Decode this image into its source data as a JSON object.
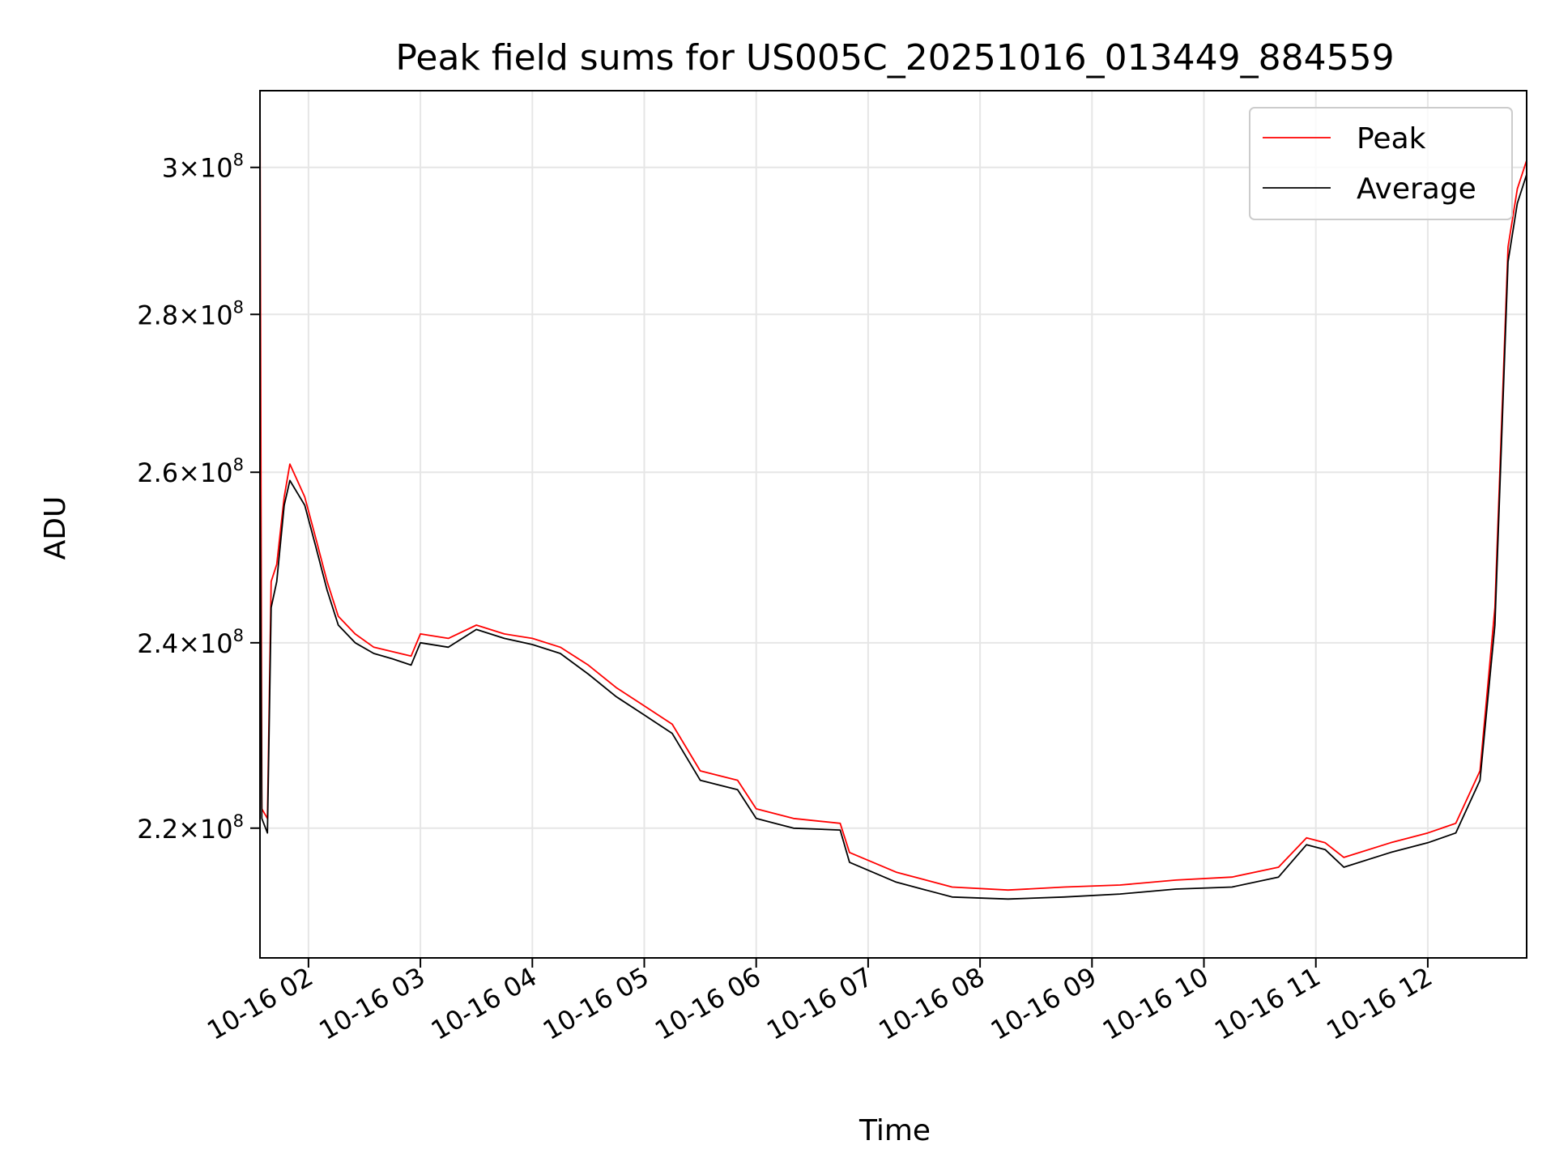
{
  "chart_data": {
    "type": "line",
    "title": "Peak field sums for US005C_20251016_013449_884559",
    "xlabel": "Time",
    "ylabel": "ADU",
    "yscale": "log",
    "grid": true,
    "legend_position": "top-right",
    "xlim": [
      "2025-10-16T01:34",
      "2025-10-16T12:53"
    ],
    "ylim": [
      207000000,
      311000000
    ],
    "x_ticks": [
      {
        "time": "2025-10-16T02:00",
        "label": "10-16 02"
      },
      {
        "time": "2025-10-16T03:00",
        "label": "10-16 03"
      },
      {
        "time": "2025-10-16T04:00",
        "label": "10-16 04"
      },
      {
        "time": "2025-10-16T05:00",
        "label": "10-16 05"
      },
      {
        "time": "2025-10-16T06:00",
        "label": "10-16 06"
      },
      {
        "time": "2025-10-16T07:00",
        "label": "10-16 07"
      },
      {
        "time": "2025-10-16T08:00",
        "label": "10-16 08"
      },
      {
        "time": "2025-10-16T09:00",
        "label": "10-16 09"
      },
      {
        "time": "2025-10-16T10:00",
        "label": "10-16 10"
      },
      {
        "time": "2025-10-16T11:00",
        "label": "10-16 11"
      },
      {
        "time": "2025-10-16T12:00",
        "label": "10-16 12"
      }
    ],
    "y_ticks": [
      {
        "value": 220000000,
        "mantissa": "2.2",
        "exponent": "8"
      },
      {
        "value": 240000000,
        "mantissa": "2.4",
        "exponent": "8"
      },
      {
        "value": 260000000,
        "mantissa": "2.6",
        "exponent": "8"
      },
      {
        "value": 280000000,
        "mantissa": "2.8",
        "exponent": "8"
      },
      {
        "value": 300000000,
        "mantissa": "3",
        "exponent": "8"
      }
    ],
    "series": [
      {
        "name": "Peak",
        "color": "#ff0000",
        "points": [
          [
            "2025-10-16T01:34",
            311000000
          ],
          [
            "2025-10-16T01:35",
            222000000
          ],
          [
            "2025-10-16T01:38",
            221000000
          ],
          [
            "2025-10-16T01:40",
            247000000
          ],
          [
            "2025-10-16T01:43",
            249000000
          ],
          [
            "2025-10-16T01:47",
            257000000
          ],
          [
            "2025-10-16T01:50",
            261000000
          ],
          [
            "2025-10-16T01:54",
            259000000
          ],
          [
            "2025-10-16T01:58",
            257000000
          ],
          [
            "2025-10-16T02:04",
            252000000
          ],
          [
            "2025-10-16T02:10",
            247000000
          ],
          [
            "2025-10-16T02:16",
            243000000
          ],
          [
            "2025-10-16T02:25",
            241000000
          ],
          [
            "2025-10-16T02:35",
            239500000
          ],
          [
            "2025-10-16T02:45",
            239000000
          ],
          [
            "2025-10-16T02:55",
            238500000
          ],
          [
            "2025-10-16T03:00",
            241000000
          ],
          [
            "2025-10-16T03:15",
            240500000
          ],
          [
            "2025-10-16T03:30",
            242000000
          ],
          [
            "2025-10-16T03:45",
            241000000
          ],
          [
            "2025-10-16T04:00",
            240500000
          ],
          [
            "2025-10-16T04:15",
            239500000
          ],
          [
            "2025-10-16T04:30",
            237500000
          ],
          [
            "2025-10-16T04:45",
            235000000
          ],
          [
            "2025-10-16T05:00",
            233000000
          ],
          [
            "2025-10-16T05:15",
            231000000
          ],
          [
            "2025-10-16T05:30",
            226000000
          ],
          [
            "2025-10-16T05:50",
            225000000
          ],
          [
            "2025-10-16T06:00",
            222000000
          ],
          [
            "2025-10-16T06:20",
            221000000
          ],
          [
            "2025-10-16T06:45",
            220500000
          ],
          [
            "2025-10-16T06:50",
            217500000
          ],
          [
            "2025-10-16T07:15",
            215500000
          ],
          [
            "2025-10-16T07:45",
            214000000
          ],
          [
            "2025-10-16T08:15",
            213700000
          ],
          [
            "2025-10-16T08:45",
            214000000
          ],
          [
            "2025-10-16T09:15",
            214200000
          ],
          [
            "2025-10-16T09:45",
            214700000
          ],
          [
            "2025-10-16T10:15",
            215000000
          ],
          [
            "2025-10-16T10:40",
            216000000
          ],
          [
            "2025-10-16T10:55",
            219000000
          ],
          [
            "2025-10-16T11:05",
            218500000
          ],
          [
            "2025-10-16T11:15",
            217000000
          ],
          [
            "2025-10-16T11:40",
            218500000
          ],
          [
            "2025-10-16T12:00",
            219500000
          ],
          [
            "2025-10-16T12:15",
            220500000
          ],
          [
            "2025-10-16T12:28",
            226000000
          ],
          [
            "2025-10-16T12:36",
            244000000
          ],
          [
            "2025-10-16T12:43",
            289000000
          ],
          [
            "2025-10-16T12:48",
            297000000
          ],
          [
            "2025-10-16T12:53",
            301000000
          ]
        ]
      },
      {
        "name": "Average",
        "color": "#000000",
        "points": [
          [
            "2025-10-16T01:34",
            260000000
          ],
          [
            "2025-10-16T01:35",
            221000000
          ],
          [
            "2025-10-16T01:38",
            219500000
          ],
          [
            "2025-10-16T01:40",
            244000000
          ],
          [
            "2025-10-16T01:43",
            247000000
          ],
          [
            "2025-10-16T01:47",
            256000000
          ],
          [
            "2025-10-16T01:50",
            259000000
          ],
          [
            "2025-10-16T01:54",
            257500000
          ],
          [
            "2025-10-16T01:58",
            256000000
          ],
          [
            "2025-10-16T02:04",
            251000000
          ],
          [
            "2025-10-16T02:10",
            246000000
          ],
          [
            "2025-10-16T02:16",
            242000000
          ],
          [
            "2025-10-16T02:25",
            240000000
          ],
          [
            "2025-10-16T02:35",
            238800000
          ],
          [
            "2025-10-16T02:45",
            238200000
          ],
          [
            "2025-10-16T02:55",
            237500000
          ],
          [
            "2025-10-16T03:00",
            240000000
          ],
          [
            "2025-10-16T03:15",
            239500000
          ],
          [
            "2025-10-16T03:30",
            241500000
          ],
          [
            "2025-10-16T03:45",
            240500000
          ],
          [
            "2025-10-16T04:00",
            239800000
          ],
          [
            "2025-10-16T04:15",
            238800000
          ],
          [
            "2025-10-16T04:30",
            236500000
          ],
          [
            "2025-10-16T04:45",
            234000000
          ],
          [
            "2025-10-16T05:00",
            232000000
          ],
          [
            "2025-10-16T05:15",
            230000000
          ],
          [
            "2025-10-16T05:30",
            225000000
          ],
          [
            "2025-10-16T05:50",
            224000000
          ],
          [
            "2025-10-16T06:00",
            221000000
          ],
          [
            "2025-10-16T06:20",
            220000000
          ],
          [
            "2025-10-16T06:45",
            219800000
          ],
          [
            "2025-10-16T06:50",
            216500000
          ],
          [
            "2025-10-16T07:15",
            214500000
          ],
          [
            "2025-10-16T07:45",
            213000000
          ],
          [
            "2025-10-16T08:15",
            212800000
          ],
          [
            "2025-10-16T08:45",
            213000000
          ],
          [
            "2025-10-16T09:15",
            213300000
          ],
          [
            "2025-10-16T09:45",
            213800000
          ],
          [
            "2025-10-16T10:15",
            214000000
          ],
          [
            "2025-10-16T10:40",
            215000000
          ],
          [
            "2025-10-16T10:55",
            218300000
          ],
          [
            "2025-10-16T11:05",
            217800000
          ],
          [
            "2025-10-16T11:15",
            216000000
          ],
          [
            "2025-10-16T11:40",
            217500000
          ],
          [
            "2025-10-16T12:00",
            218500000
          ],
          [
            "2025-10-16T12:15",
            219500000
          ],
          [
            "2025-10-16T12:28",
            225000000
          ],
          [
            "2025-10-16T12:36",
            242000000
          ],
          [
            "2025-10-16T12:43",
            287000000
          ],
          [
            "2025-10-16T12:48",
            295000000
          ],
          [
            "2025-10-16T12:53",
            299000000
          ]
        ]
      }
    ]
  }
}
